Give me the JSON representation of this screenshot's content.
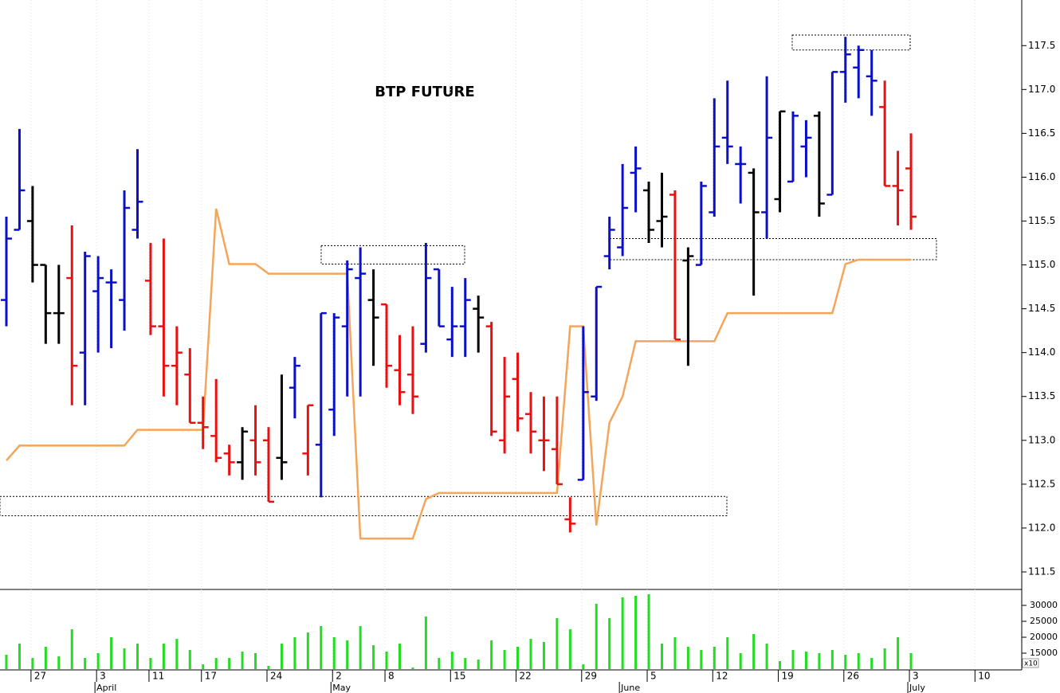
{
  "chart_data": {
    "type": "ohlc",
    "title": "BTP FUTURE",
    "categories": [
      null,
      null,
      "27",
      null,
      null,
      null,
      null,
      "3",
      null,
      null,
      null,
      "11",
      null,
      null,
      null,
      "17",
      null,
      null,
      null,
      null,
      "24",
      null,
      null,
      null,
      null,
      "2",
      null,
      null,
      null,
      "8",
      null,
      null,
      null,
      null,
      "15",
      null,
      null,
      null,
      null,
      "22",
      null,
      null,
      null,
      null,
      "29",
      null,
      null,
      null,
      null,
      "5",
      null,
      null,
      null,
      null,
      "12",
      null,
      null,
      null,
      null,
      "19",
      null,
      null,
      null,
      null,
      "26",
      null,
      null,
      null,
      null,
      "3",
      null,
      null,
      null,
      null,
      "10"
    ],
    "months": [
      null,
      null,
      null,
      null,
      null,
      null,
      null,
      "April",
      null,
      null,
      null,
      null,
      null,
      null,
      null,
      null,
      null,
      null,
      null,
      null,
      null,
      null,
      null,
      null,
      null,
      "May",
      null,
      null,
      null,
      null,
      null,
      null,
      null,
      null,
      null,
      null,
      null,
      null,
      null,
      null,
      null,
      null,
      null,
      null,
      null,
      null,
      null,
      "June",
      null,
      null,
      null,
      null,
      null,
      null,
      null,
      null,
      null,
      null,
      null,
      null,
      null,
      null,
      null,
      null,
      null,
      null,
      null,
      null,
      null,
      "July",
      null,
      null,
      null,
      null,
      null
    ],
    "open": [
      114.6,
      115.4,
      115.5,
      115.0,
      114.45,
      114.85,
      114.0,
      114.7,
      114.8,
      114.6,
      115.4,
      114.82,
      114.3,
      113.85,
      113.75,
      113.2,
      113.05,
      112.85,
      112.75,
      113.0,
      113.0,
      112.8,
      113.6,
      112.85,
      112.95,
      113.35,
      114.3,
      114.85,
      114.6,
      114.55,
      113.8,
      113.75,
      114.1,
      114.95,
      114.15,
      114.3,
      114.5,
      114.3,
      113.0,
      113.7,
      113.3,
      113.0,
      112.9,
      112.1,
      112.55,
      113.5,
      115.1,
      115.2,
      116.05,
      115.85,
      115.5,
      115.8,
      115.05,
      115.0,
      115.6,
      116.45,
      116.15,
      116.05,
      115.6,
      115.75,
      115.95,
      116.35,
      116.7,
      115.8,
      117.2,
      117.25,
      117.15,
      116.8,
      115.9,
      116.1,
      null,
      null,
      null,
      null,
      null
    ],
    "high": [
      115.55,
      116.55,
      115.9,
      115.0,
      115.0,
      115.45,
      115.15,
      115.1,
      114.95,
      115.85,
      116.32,
      115.25,
      115.3,
      114.3,
      114.05,
      113.5,
      113.7,
      112.95,
      113.15,
      113.4,
      113.15,
      113.75,
      113.95,
      113.4,
      114.45,
      114.45,
      115.05,
      115.2,
      114.95,
      114.55,
      114.2,
      114.3,
      115.25,
      114.95,
      114.75,
      114.85,
      114.65,
      114.35,
      113.95,
      114.0,
      113.55,
      113.5,
      113.5,
      112.35,
      114.3,
      114.75,
      115.55,
      116.15,
      116.35,
      115.95,
      116.05,
      115.85,
      115.2,
      115.95,
      116.9,
      117.1,
      116.35,
      116.1,
      117.15,
      116.75,
      116.75,
      116.65,
      116.75,
      117.2,
      117.6,
      117.5,
      117.45,
      117.1,
      116.3,
      116.5,
      null,
      null,
      null,
      null,
      null
    ],
    "low": [
      114.3,
      115.4,
      114.8,
      114.1,
      114.1,
      113.4,
      113.4,
      114.0,
      114.05,
      114.25,
      115.3,
      114.2,
      113.5,
      113.4,
      113.2,
      112.9,
      112.75,
      112.6,
      112.55,
      112.6,
      112.3,
      112.55,
      113.25,
      112.6,
      112.35,
      113.05,
      113.5,
      113.5,
      113.85,
      113.6,
      113.4,
      113.3,
      114.0,
      114.3,
      113.95,
      113.95,
      114.0,
      113.05,
      112.85,
      113.1,
      112.85,
      112.65,
      112.5,
      111.95,
      112.55,
      113.45,
      114.95,
      115.1,
      115.6,
      115.25,
      115.2,
      114.15,
      113.85,
      115.0,
      115.55,
      116.15,
      115.7,
      114.65,
      115.3,
      115.6,
      115.95,
      116.0,
      115.55,
      115.8,
      116.85,
      116.9,
      116.7,
      115.9,
      115.45,
      115.4,
      null,
      null,
      null,
      null,
      null
    ],
    "close": [
      115.3,
      115.85,
      115.0,
      114.45,
      114.45,
      113.85,
      115.1,
      114.85,
      114.8,
      115.65,
      115.72,
      114.3,
      113.85,
      114.0,
      113.2,
      113.15,
      112.8,
      112.75,
      113.1,
      112.75,
      112.3,
      112.75,
      113.85,
      113.4,
      114.45,
      114.4,
      114.95,
      114.9,
      114.4,
      113.85,
      113.55,
      113.5,
      114.85,
      114.3,
      114.3,
      114.6,
      114.4,
      113.1,
      113.5,
      113.25,
      113.1,
      113.0,
      112.5,
      112.05,
      113.55,
      114.75,
      115.4,
      115.65,
      116.1,
      115.4,
      115.55,
      114.15,
      115.1,
      115.9,
      116.35,
      116.35,
      116.15,
      115.6,
      116.45,
      116.75,
      116.7,
      116.45,
      115.7,
      117.2,
      117.4,
      117.45,
      117.1,
      115.9,
      115.85,
      115.55,
      null,
      null,
      null,
      null,
      null
    ],
    "bar_colors": [
      "#0a10c8",
      "#0a10c8",
      "#000000",
      "#000000",
      "#000000",
      "#e81010",
      "#0a10c8",
      "#0a10c8",
      "#0a10c8",
      "#0a10c8",
      "#0a10c8",
      "#e81010",
      "#e81010",
      "#e81010",
      "#e81010",
      "#e81010",
      "#e81010",
      "#e81010",
      "#000000",
      "#e81010",
      "#e81010",
      "#000000",
      "#0a10c8",
      "#e81010",
      "#0a10c8",
      "#0a10c8",
      "#0a10c8",
      "#0a10c8",
      "#000000",
      "#e81010",
      "#e81010",
      "#e81010",
      "#0a10c8",
      "#0a10c8",
      "#0a10c8",
      "#0a10c8",
      "#000000",
      "#e81010",
      "#e81010",
      "#e81010",
      "#e81010",
      "#e81010",
      "#e81010",
      "#e81010",
      "#0a10c8",
      "#0a10c8",
      "#0a10c8",
      "#0a10c8",
      "#0a10c8",
      "#000000",
      "#000000",
      "#e81010",
      "#000000",
      "#0a10c8",
      "#0a10c8",
      "#0a10c8",
      "#0a10c8",
      "#000000",
      "#0a10c8",
      "#000000",
      "#0a10c8",
      "#0a10c8",
      "#000000",
      "#0a10c8",
      "#0a10c8",
      "#0a10c8",
      "#0a10c8",
      "#e81010",
      "#e81010",
      "#e81010",
      null,
      null,
      null,
      null,
      null
    ],
    "average": {
      "color": "#f5a55a",
      "values": [
        112.77,
        112.94,
        112.94,
        112.94,
        112.94,
        112.94,
        112.94,
        112.94,
        112.94,
        112.94,
        113.12,
        113.12,
        113.12,
        113.12,
        113.12,
        113.12,
        115.64,
        115.01,
        115.01,
        115.01,
        114.9,
        114.9,
        114.9,
        114.9,
        114.9,
        114.9,
        114.9,
        111.88,
        111.88,
        111.88,
        111.88,
        111.88,
        112.33,
        112.4,
        112.4,
        112.4,
        112.4,
        112.4,
        112.4,
        112.4,
        112.4,
        112.4,
        112.4,
        114.3,
        114.3,
        112.03,
        113.2,
        113.5,
        114.13,
        114.13,
        114.13,
        114.13,
        114.13,
        114.13,
        114.13,
        114.45,
        114.45,
        114.45,
        114.45,
        114.45,
        114.45,
        114.45,
        114.45,
        114.45,
        115.01,
        115.06,
        115.06,
        115.06,
        115.06,
        115.06,
        null,
        null,
        null,
        null,
        null
      ]
    },
    "zones": [
      {
        "high": 115.22,
        "low": 115.01
      },
      {
        "high": 112.36,
        "low": 112.14
      },
      {
        "high": 117.62,
        "low": 117.45
      },
      {
        "high": 115.3,
        "low": 115.06
      }
    ],
    "ylim": [
      111.3,
      118.02
    ],
    "yticks": [
      111.5,
      {
        "value": 112,
        "label": "112.0"
      },
      112.5,
      {
        "value": 113,
        "label": "113.0"
      },
      113.5,
      {
        "value": 114,
        "label": "114.0"
      },
      114.5,
      {
        "value": 115,
        "label": "115.0"
      },
      115.5,
      {
        "value": 116,
        "label": "116.0"
      },
      116.5,
      {
        "value": 117,
        "label": "117.0"
      },
      117.5
    ],
    "grid": true,
    "volume": {
      "color": "#22dd22",
      "unit": "x10",
      "values": [
        14500,
        18000,
        13500,
        17000,
        14000,
        22500,
        13500,
        15000,
        20000,
        16500,
        18000,
        13500,
        18000,
        19500,
        16000,
        11500,
        13500,
        13500,
        15500,
        15000,
        11000,
        18000,
        20000,
        21500,
        23500,
        20000,
        19000,
        23500,
        17500,
        15500,
        18000,
        10500,
        26500,
        13500,
        15500,
        13500,
        13000,
        19000,
        16000,
        17000,
        19500,
        18500,
        26000,
        22500,
        11500,
        30500,
        26000,
        32500,
        33000,
        33500,
        18000,
        20000,
        17000,
        16000,
        17000,
        20000,
        15000,
        21000,
        18000,
        12500,
        16000,
        15500,
        15000,
        16000,
        14500,
        15000,
        13500,
        16500,
        20000,
        15000,
        null,
        null,
        null,
        null,
        null
      ],
      "ylim": [
        10000,
        35000
      ],
      "yticks": [
        15000,
        20000,
        25000,
        30000
      ]
    }
  }
}
